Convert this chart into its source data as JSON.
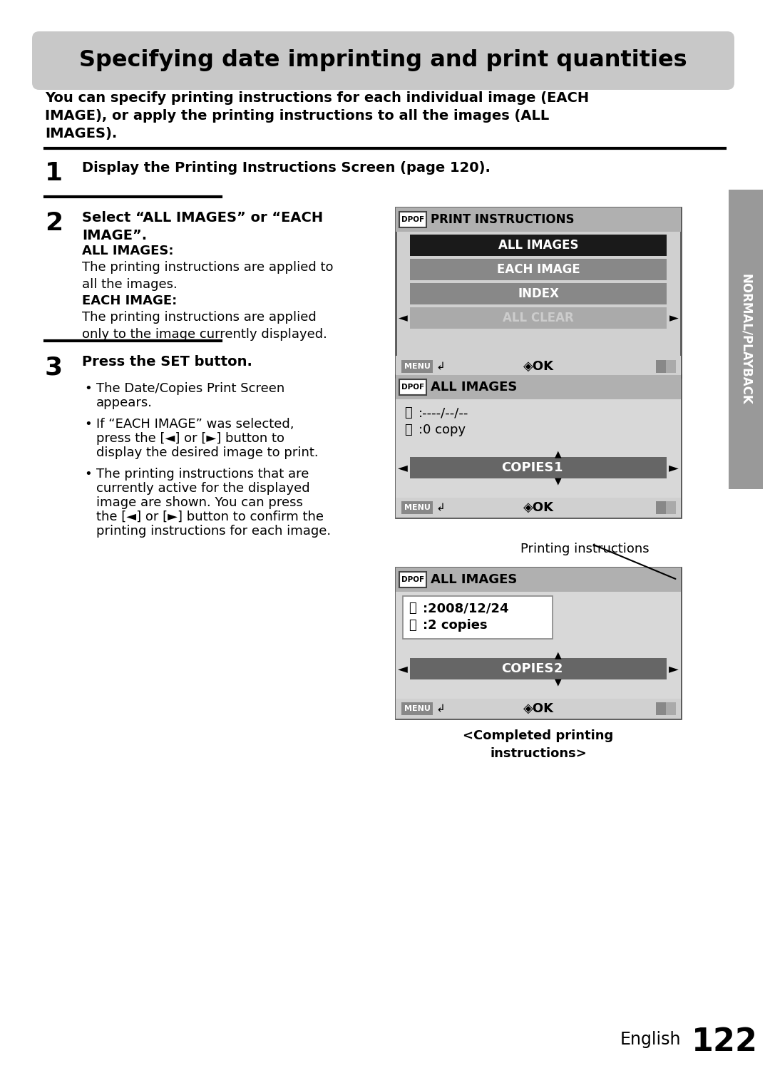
{
  "bg_color": "#ffffff",
  "title_text": "Specifying date imprinting and print quantities",
  "title_bg": "#c8c8c8",
  "title_fontsize": 23,
  "subtitle_text": "You can specify printing instructions for each individual image (EACH\nIMAGE), or apply the printing instructions to all the images (ALL\nIMAGES).",
  "subtitle_fontsize": 14,
  "step1_num": "1",
  "step1_text": "Display the Printing Instructions Screen (page 120).",
  "step1_fontsize": 14,
  "step2_num": "2",
  "step2_head": "Select “ALL IMAGES” or “EACH\nIMAGE”.",
  "step2_all_images_head": "ALL IMAGES:",
  "step2_all_images_body": "The printing instructions are applied to\nall the images.",
  "step2_each_image_head": "EACH IMAGE:",
  "step2_each_image_body": "The printing instructions are applied\nonly to the image currently displayed.",
  "step3_num": "3",
  "step3_head": "Press the SET button.",
  "step3_bullets": [
    "The Date/Copies Print Screen\nappears.",
    "If “EACH IMAGE” was selected,\npress the [◄] or [►] button to\ndisplay the desired image to print.",
    "The printing instructions that are\ncurrently active for the displayed\nimage are shown. You can press\nthe [◄] or [►] button to confirm the\nprinting instructions for each image."
  ],
  "sidebar_text": "NORMAL/PLAYBACK",
  "page_num": "122",
  "screen1_items": [
    "ALL IMAGES",
    "EACH IMAGE",
    "INDEX",
    "ALL CLEAR"
  ],
  "screen2_line1": ":----/--/--",
  "screen2_line2": ":0 copy",
  "screen2_copies": "COPIES  1",
  "screen3_line1": ":2008/12/24",
  "screen3_line2": ":2 copies",
  "screen3_copies": "COPIES  2",
  "caption1": "Printing instructions",
  "caption2": "<Completed printing\ninstructions>"
}
